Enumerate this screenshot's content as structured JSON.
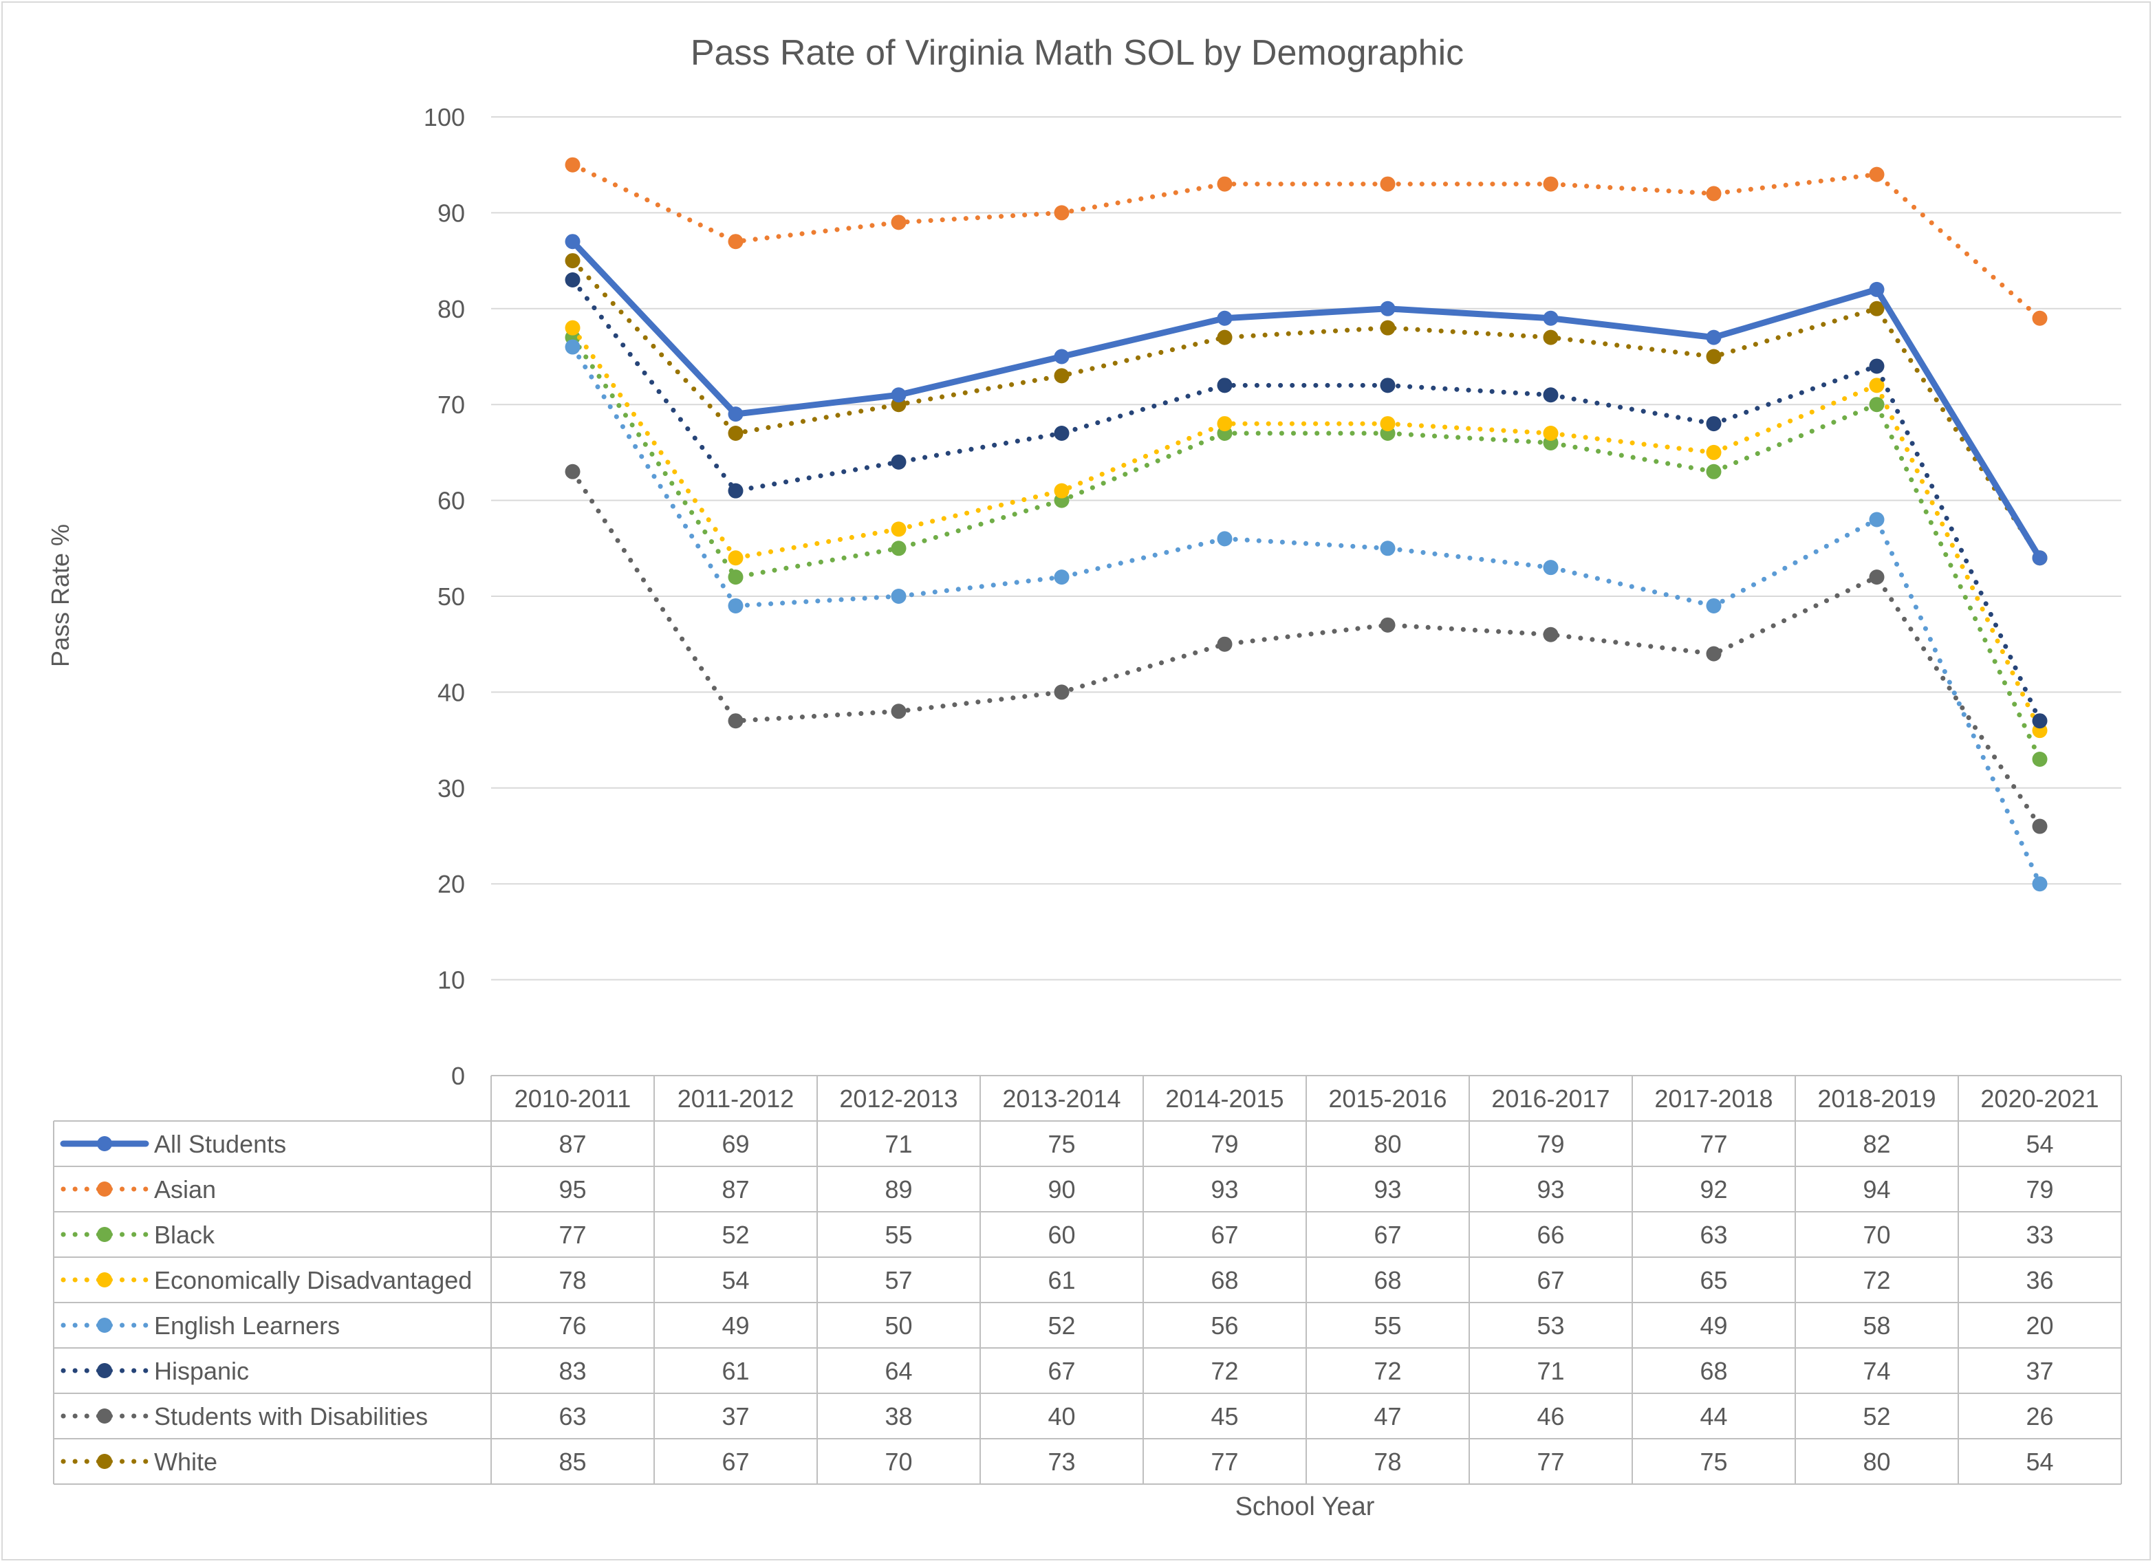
{
  "chart_data": {
    "type": "line",
    "title": "Pass Rate of Virginia Math SOL by Demographic",
    "xlabel": "School Year",
    "ylabel": "Pass Rate %",
    "ylim": [
      0,
      100
    ],
    "yticks": [
      0,
      10,
      20,
      30,
      40,
      50,
      60,
      70,
      80,
      90,
      100
    ],
    "grid": true,
    "legend": "data-table-below",
    "categories": [
      "2010-2011",
      "2011-2012",
      "2012-2013",
      "2013-2014",
      "2014-2015",
      "2015-2016",
      "2016-2017",
      "2017-2018",
      "2018-2019",
      "2020-2021"
    ],
    "series": [
      {
        "name": "All Students",
        "color": "#4472c4",
        "style": "solid",
        "values": [
          87,
          69,
          71,
          75,
          79,
          80,
          79,
          77,
          82,
          54
        ]
      },
      {
        "name": "Asian",
        "color": "#ed7d31",
        "style": "dotted",
        "values": [
          95,
          87,
          89,
          90,
          93,
          93,
          93,
          92,
          94,
          79
        ]
      },
      {
        "name": "Black",
        "color": "#70ad47",
        "style": "dotted",
        "values": [
          77,
          52,
          55,
          60,
          67,
          67,
          66,
          63,
          70,
          33
        ]
      },
      {
        "name": "Economically Disadvantaged",
        "color": "#ffc000",
        "style": "dotted",
        "values": [
          78,
          54,
          57,
          61,
          68,
          68,
          67,
          65,
          72,
          36
        ]
      },
      {
        "name": "English Learners",
        "color": "#5b9bd5",
        "style": "dotted",
        "values": [
          76,
          49,
          50,
          52,
          56,
          55,
          53,
          49,
          58,
          20
        ]
      },
      {
        "name": "Hispanic",
        "color": "#264478",
        "style": "dotted",
        "values": [
          83,
          61,
          64,
          67,
          72,
          72,
          71,
          68,
          74,
          37
        ]
      },
      {
        "name": "Students with Disabilities",
        "color": "#636363",
        "style": "dotted",
        "values": [
          63,
          37,
          38,
          40,
          45,
          47,
          46,
          44,
          52,
          26
        ]
      },
      {
        "name": "White",
        "color": "#997300",
        "style": "dotted",
        "values": [
          85,
          67,
          70,
          73,
          77,
          78,
          77,
          75,
          80,
          54
        ]
      }
    ]
  }
}
